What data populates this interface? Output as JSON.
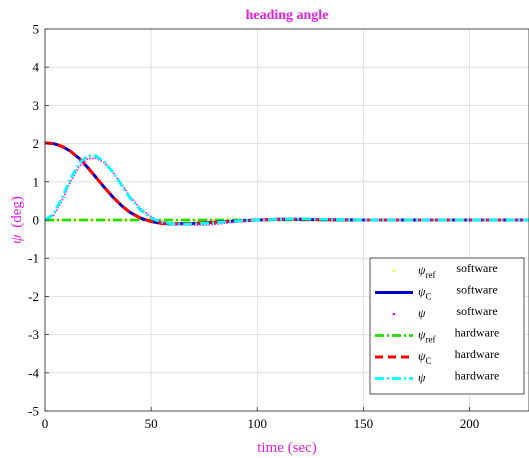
{
  "chart_data": {
    "type": "line",
    "title": "heading angle",
    "xlabel": "time (sec)",
    "ylabel_symbol": "ψ",
    "ylabel_unit": "(deg)",
    "xlim": [
      0,
      228
    ],
    "ylim": [
      -5,
      5
    ],
    "xticks": [
      "0",
      "50",
      "100",
      "150",
      "200"
    ],
    "yticks": [
      "-5",
      "-4",
      "-3",
      "-2",
      "-1",
      "0",
      "1",
      "2",
      "3",
      "4",
      "5"
    ],
    "grid": true,
    "legend_placement": "bottom-right",
    "colors": {
      "title": "#e020e0",
      "axis_label": "#e020e0",
      "ref_software": "#ffff00",
      "c_software": "#0000cc",
      "psi_software": "#ff00ff",
      "ref_hardware": "#22dd00",
      "c_hardware": "#ff0000",
      "psi_hardware": "#00ffff"
    },
    "series": [
      {
        "symbol": "ψ",
        "sub": "ref",
        "source": "software",
        "style": "dots",
        "color_key": "ref_software",
        "x": [
          0,
          5,
          10,
          15,
          20,
          30,
          40,
          60,
          80,
          100,
          120,
          150,
          200,
          228
        ],
        "y": [
          0,
          0,
          0,
          0,
          0,
          0,
          0,
          0,
          0,
          0,
          0,
          0,
          0,
          0
        ]
      },
      {
        "symbol": "ψ",
        "sub": "C",
        "source": "software",
        "style": "solid",
        "color_key": "c_software",
        "x": [
          0,
          4,
          8,
          12,
          16,
          20,
          24,
          28,
          32,
          36,
          40,
          45,
          50,
          55,
          60,
          70,
          80,
          90,
          100,
          110,
          120,
          130,
          150,
          200,
          228
        ],
        "y": [
          2.02,
          2.0,
          1.93,
          1.8,
          1.62,
          1.38,
          1.12,
          0.85,
          0.6,
          0.38,
          0.2,
          0.05,
          -0.04,
          -0.09,
          -0.1,
          -0.09,
          -0.06,
          -0.03,
          0.0,
          0.02,
          0.02,
          0.01,
          0.0,
          0.0,
          0.0
        ]
      },
      {
        "symbol": "ψ",
        "sub": "",
        "source": "software",
        "style": "dots",
        "color_key": "psi_software",
        "x": [
          0,
          4,
          8,
          12,
          16,
          20,
          24,
          28,
          32,
          36,
          40,
          45,
          50,
          55,
          60,
          65,
          70,
          75,
          80,
          90,
          100,
          110,
          120,
          130,
          150,
          200,
          228
        ],
        "y": [
          0,
          0.12,
          0.5,
          1.0,
          1.4,
          1.6,
          1.62,
          1.5,
          1.25,
          0.95,
          0.62,
          0.3,
          0.08,
          -0.05,
          -0.1,
          -0.12,
          -0.13,
          -0.13,
          -0.11,
          -0.05,
          0.0,
          0.02,
          0.03,
          0.02,
          0.0,
          0.0,
          0.0
        ]
      },
      {
        "symbol": "ψ",
        "sub": "ref",
        "source": "hardware",
        "style": "dashdot",
        "color_key": "ref_hardware",
        "x": [
          0,
          50,
          100,
          150,
          200,
          228
        ],
        "y": [
          0,
          0,
          0,
          0,
          0,
          0
        ]
      },
      {
        "symbol": "ψ",
        "sub": "C",
        "source": "hardware",
        "style": "dashed",
        "color_key": "c_hardware",
        "x": [
          0,
          4,
          8,
          12,
          16,
          20,
          24,
          28,
          32,
          36,
          40,
          45,
          50,
          55,
          60,
          70,
          80,
          90,
          100,
          110,
          120,
          130,
          150,
          200,
          228
        ],
        "y": [
          2.02,
          2.0,
          1.93,
          1.8,
          1.62,
          1.38,
          1.12,
          0.85,
          0.6,
          0.38,
          0.2,
          0.05,
          -0.04,
          -0.09,
          -0.1,
          -0.09,
          -0.06,
          -0.03,
          0.0,
          0.02,
          0.02,
          0.01,
          0.0,
          0.0,
          0.0
        ]
      },
      {
        "symbol": "ψ",
        "sub": "",
        "source": "hardware",
        "style": "dashdot",
        "color_key": "psi_hardware",
        "x": [
          0,
          4,
          8,
          12,
          16,
          20,
          24,
          28,
          32,
          36,
          40,
          45,
          50,
          55,
          60,
          65,
          70,
          75,
          80,
          90,
          100,
          110,
          120,
          130,
          150,
          200,
          228
        ],
        "y": [
          0,
          0.15,
          0.58,
          1.08,
          1.48,
          1.68,
          1.68,
          1.52,
          1.25,
          0.92,
          0.58,
          0.26,
          0.05,
          -0.06,
          -0.1,
          -0.11,
          -0.1,
          -0.09,
          -0.07,
          -0.03,
          0.0,
          0.02,
          0.03,
          0.02,
          0.0,
          0.0,
          0.0
        ]
      }
    ]
  }
}
